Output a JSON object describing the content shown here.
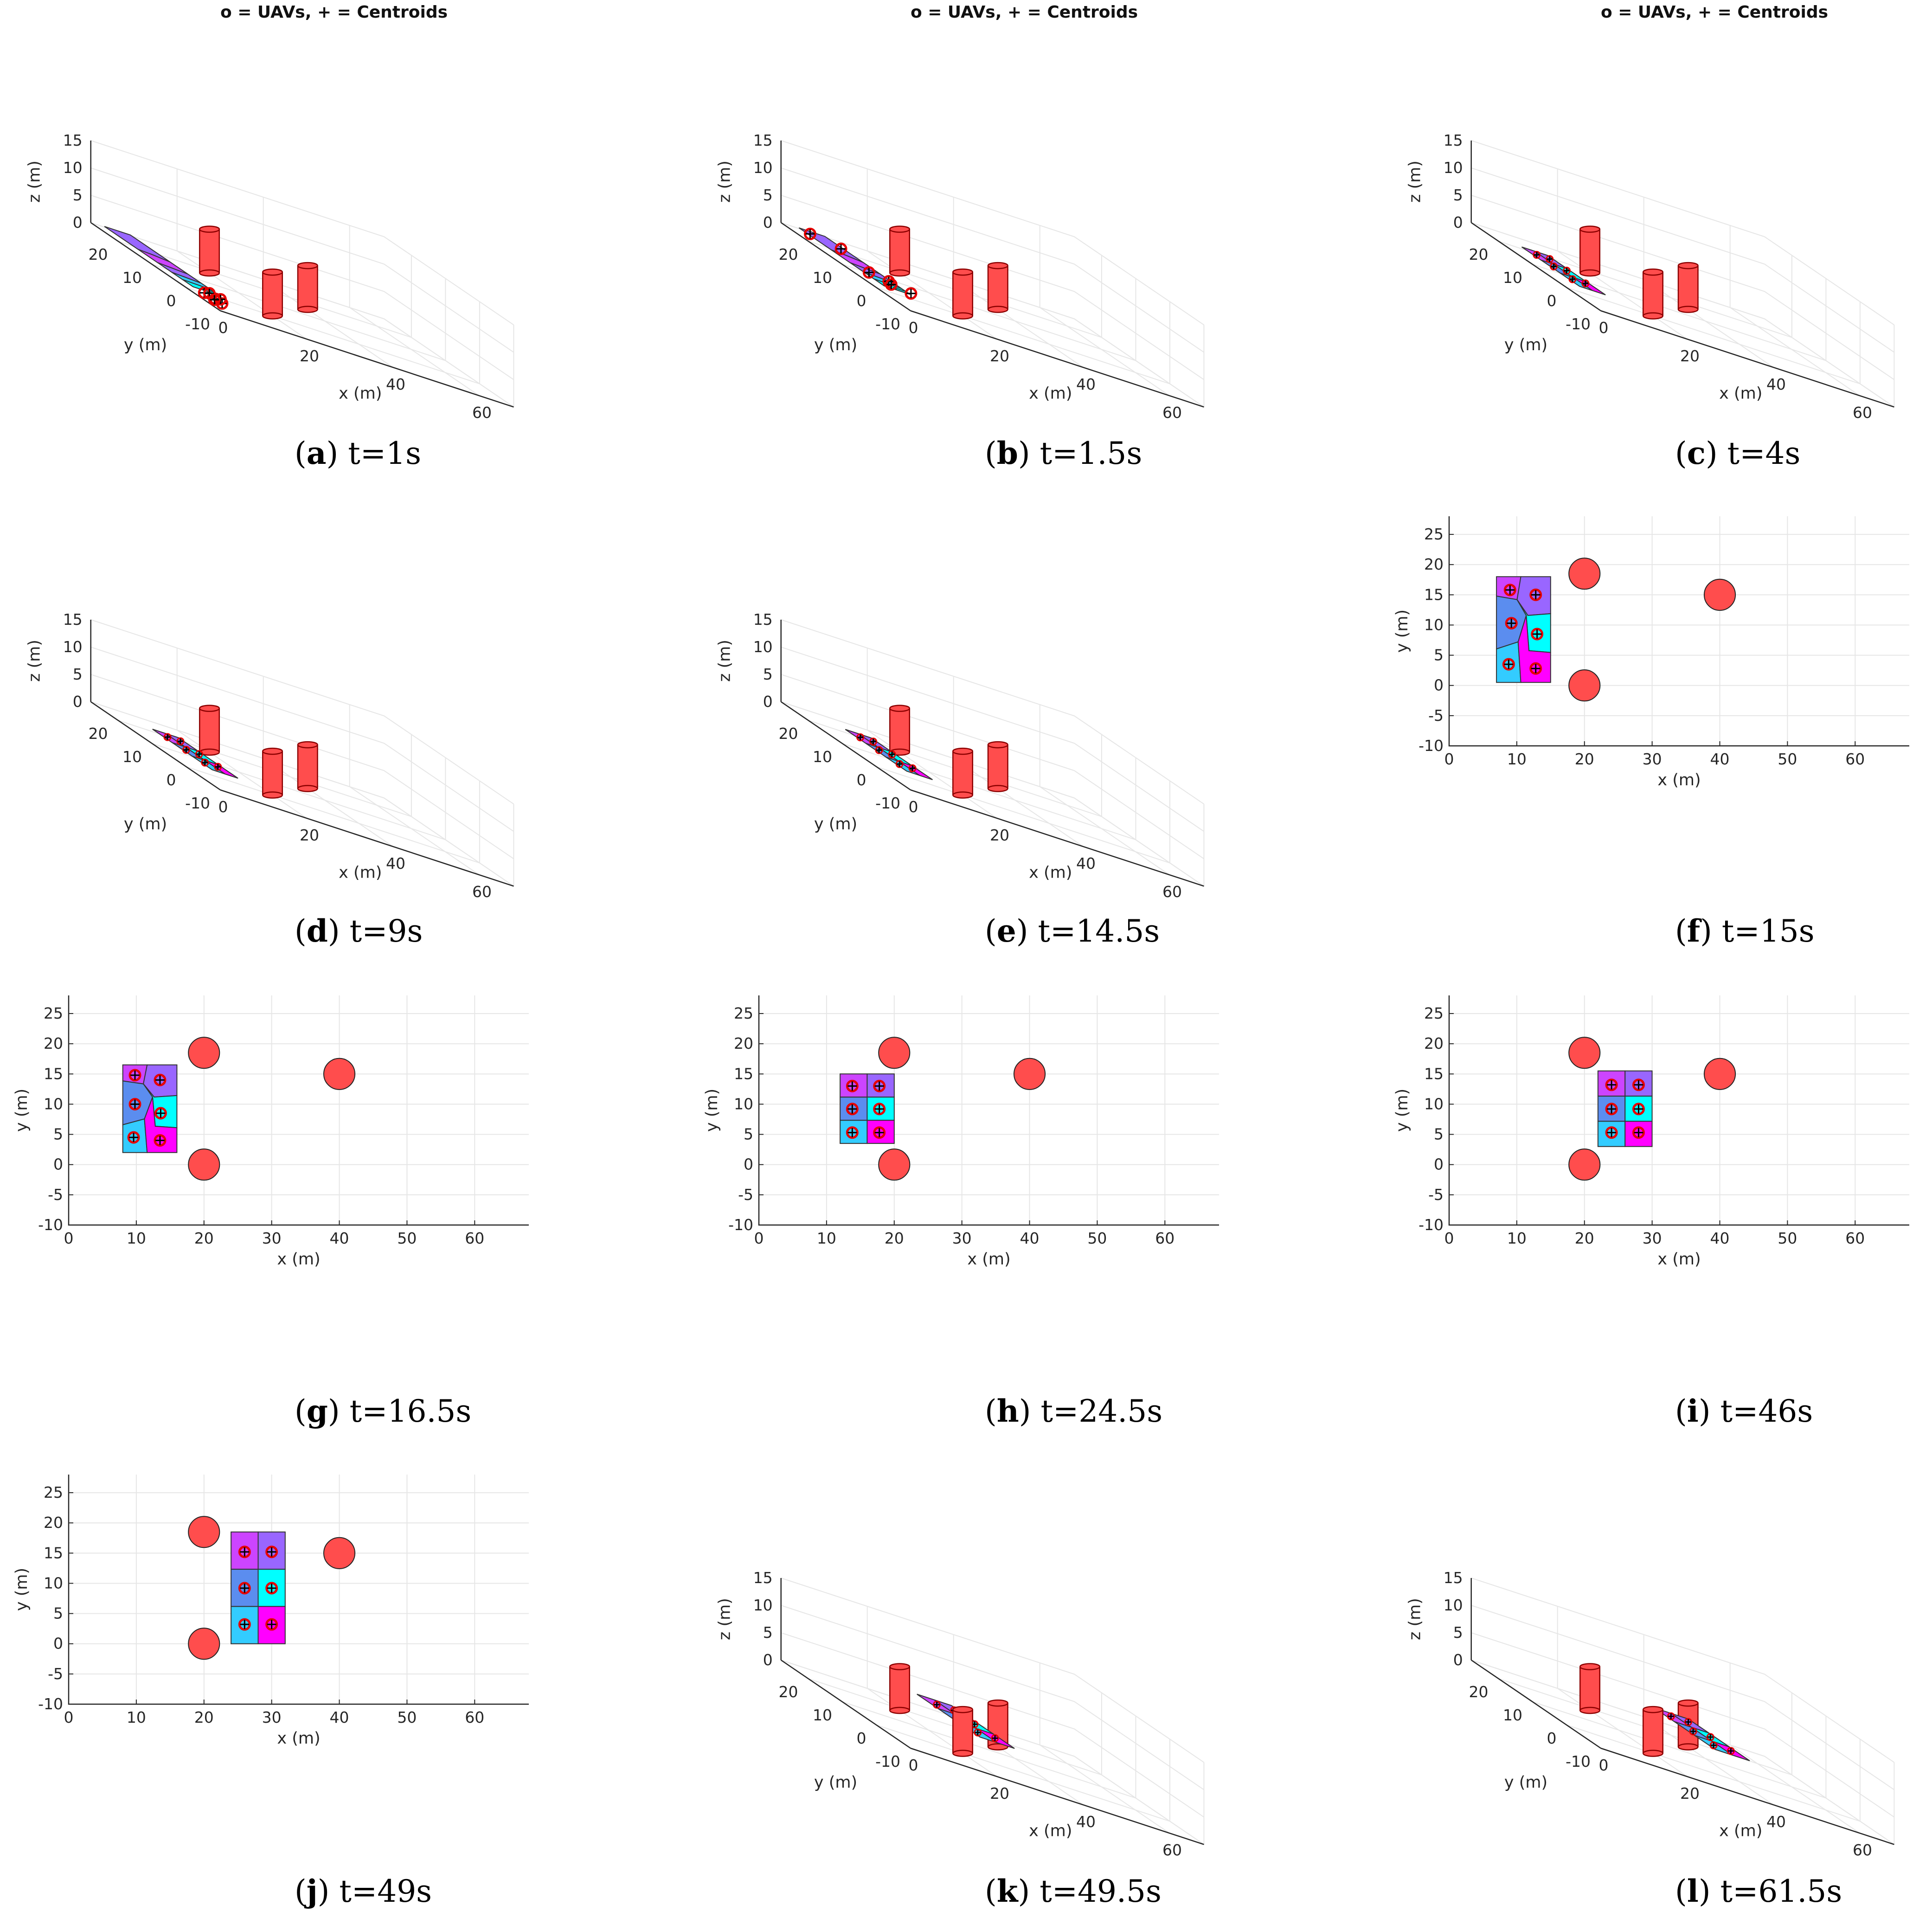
{
  "figure_panels": [
    {
      "id": "a",
      "time": "t=1s",
      "title": "o = UAVs, + = Centroids"
    },
    {
      "id": "b",
      "time": "t=1.5s",
      "title": "o = UAVs, + = Centroids"
    },
    {
      "id": "c",
      "time": "t=4s",
      "title": "o = UAVs, + = Centroids"
    },
    {
      "id": "d",
      "time": "t=9s",
      "title": ""
    },
    {
      "id": "e",
      "time": "t=14.5s",
      "title": ""
    },
    {
      "id": "f",
      "time": "t=15s",
      "title": ""
    },
    {
      "id": "g",
      "time": "t=16.5s",
      "title": ""
    },
    {
      "id": "h",
      "time": "t=24.5s",
      "title": ""
    },
    {
      "id": "i",
      "time": "t=46s",
      "title": ""
    },
    {
      "id": "j",
      "time": "t=49s",
      "title": ""
    },
    {
      "id": "k",
      "time": "t=49.5s",
      "title": ""
    },
    {
      "id": "l",
      "time": "t=61.5s",
      "title": ""
    }
  ],
  "colors": {
    "obstacle": "#ff4d4d",
    "obstacle_edge": "#8b0000",
    "purple": "#9966ff",
    "violet": "#cc44ff",
    "blue": "#5b8def",
    "cyan": "#00ffff",
    "sky": "#33ccff",
    "magenta": "#ff00ff",
    "grid": "#e6e6e6",
    "axis": "#262626",
    "uav": "#e60000"
  },
  "chart_data": [
    {
      "panel": "a",
      "type": "scatter",
      "view": "3d",
      "title": "o = UAVs, + = Centroids",
      "xlabel": "x (m)",
      "ylabel": "y (m)",
      "zlabel": "z (m)",
      "xlim": [
        0,
        68
      ],
      "ylim": [
        -10,
        28
      ],
      "zlim": [
        0,
        15
      ],
      "xticks": [
        0,
        20,
        40,
        60
      ],
      "yticks": [
        -10,
        0,
        10,
        20
      ],
      "zticks": [
        0,
        5,
        10,
        15
      ],
      "obstacles": [
        {
          "x": 20,
          "y": 0,
          "r": 2.5,
          "h": 8
        },
        {
          "x": 20,
          "y": 18.5,
          "r": 2.5,
          "h": 8
        },
        {
          "x": 40,
          "y": 15,
          "r": 2.5,
          "h": 8
        }
      ],
      "formation": {
        "x0": 0,
        "x1": 6,
        "y0": -2,
        "y1": 24,
        "z": 1,
        "layout": "strip"
      },
      "uavs": [
        [
          1,
          -4,
          1
        ],
        [
          2,
          -6,
          1
        ],
        [
          3,
          -3,
          1
        ],
        [
          2,
          -8,
          1
        ],
        [
          4,
          -5,
          1
        ],
        [
          1,
          -7,
          1
        ]
      ]
    },
    {
      "panel": "b",
      "type": "scatter",
      "view": "3d",
      "title": "o = UAVs, + = Centroids",
      "xlabel": "x (m)",
      "ylabel": "y (m)",
      "zlabel": "z (m)",
      "xlim": [
        0,
        68
      ],
      "ylim": [
        -10,
        28
      ],
      "zlim": [
        0,
        15
      ],
      "xticks": [
        0,
        20,
        40,
        60
      ],
      "yticks": [
        -10,
        0,
        10,
        20
      ],
      "zticks": [
        0,
        5,
        10,
        15
      ],
      "obstacles": [
        {
          "x": 20,
          "y": 0,
          "r": 2.5,
          "h": 8
        },
        {
          "x": 20,
          "y": 18.5,
          "r": 2.5,
          "h": 8
        },
        {
          "x": 40,
          "y": 15,
          "r": 2.5,
          "h": 8
        }
      ],
      "formation": {
        "x0": 1,
        "x1": 7,
        "y0": -1,
        "y1": 24,
        "z": 1,
        "layout": "strip"
      },
      "uavs": [
        [
          2,
          22,
          1
        ],
        [
          6,
          18,
          1
        ],
        [
          3,
          6,
          1
        ],
        [
          6,
          4,
          1
        ],
        [
          5,
          2,
          1
        ],
        [
          8,
          0,
          1
        ]
      ]
    },
    {
      "panel": "c",
      "type": "scatter",
      "view": "3d",
      "title": "o = UAVs, + = Centroids",
      "xlabel": "x (m)",
      "ylabel": "y (m)",
      "zlabel": "z (m)",
      "xlim": [
        0,
        68
      ],
      "ylim": [
        -10,
        28
      ],
      "zlim": [
        0,
        15
      ],
      "xticks": [
        0,
        20,
        40,
        60
      ],
      "yticks": [
        -10,
        0,
        10,
        20
      ],
      "zticks": [
        0,
        5,
        10,
        15
      ],
      "obstacles": [
        {
          "x": 20,
          "y": 0,
          "r": 2.5,
          "h": 8
        },
        {
          "x": 20,
          "y": 18.5,
          "r": 2.5,
          "h": 8
        },
        {
          "x": 40,
          "y": 15,
          "r": 2.5,
          "h": 8
        }
      ],
      "formation": {
        "x0": 3,
        "x1": 9,
        "y0": 0,
        "y1": 17,
        "z": 1,
        "layout": "grid"
      },
      "uavs": [
        [
          4.5,
          14.5,
          1
        ],
        [
          7.5,
          14.5,
          1
        ],
        [
          4.5,
          9.5,
          1
        ],
        [
          7.5,
          9.5,
          1
        ],
        [
          4.5,
          4,
          1
        ],
        [
          7.5,
          4,
          1
        ]
      ]
    },
    {
      "panel": "d",
      "type": "scatter",
      "view": "3d",
      "title": "",
      "xlabel": "x (m)",
      "ylabel": "y (m)",
      "zlabel": "z (m)",
      "xlim": [
        0,
        68
      ],
      "ylim": [
        -10,
        28
      ],
      "zlim": [
        0,
        15
      ],
      "xticks": [
        0,
        20,
        40,
        60
      ],
      "yticks": [
        -10,
        0,
        10,
        20
      ],
      "zticks": [
        0,
        5,
        10,
        15
      ],
      "obstacles": [
        {
          "x": 20,
          "y": 0,
          "r": 2.5,
          "h": 8
        },
        {
          "x": 20,
          "y": 18.5,
          "r": 2.5,
          "h": 8
        },
        {
          "x": 40,
          "y": 15,
          "r": 2.5,
          "h": 8
        }
      ],
      "formation": {
        "x0": 6,
        "x1": 12,
        "y0": 0,
        "y1": 17.5,
        "z": 1,
        "layout": "grid"
      },
      "uavs": [
        [
          7.5,
          15,
          1
        ],
        [
          10.5,
          15,
          1
        ],
        [
          7.5,
          9.5,
          1
        ],
        [
          10.5,
          9.5,
          1
        ],
        [
          7.5,
          4,
          1
        ],
        [
          10.5,
          4,
          1
        ]
      ]
    },
    {
      "panel": "e",
      "type": "scatter",
      "view": "3d",
      "title": "",
      "xlabel": "x (m)",
      "ylabel": "y (m)",
      "zlabel": "z (m)",
      "xlim": [
        0,
        68
      ],
      "ylim": [
        -10,
        28
      ],
      "zlim": [
        0,
        15
      ],
      "xticks": [
        0,
        20,
        40,
        60
      ],
      "yticks": [
        -10,
        0,
        10,
        20
      ],
      "zticks": [
        0,
        5,
        10,
        15
      ],
      "obstacles": [
        {
          "x": 20,
          "y": 0,
          "r": 2.5,
          "h": 8
        },
        {
          "x": 20,
          "y": 18.5,
          "r": 2.5,
          "h": 8
        },
        {
          "x": 40,
          "y": 15,
          "r": 2.5,
          "h": 8
        }
      ],
      "formation": {
        "x0": 7,
        "x1": 13,
        "y0": 0,
        "y1": 18,
        "z": 1,
        "layout": "grid"
      },
      "uavs": [
        [
          8.5,
          15.5,
          1
        ],
        [
          11.5,
          15.5,
          1
        ],
        [
          8.5,
          10,
          1
        ],
        [
          11.5,
          10,
          1
        ],
        [
          8.5,
          4,
          1
        ],
        [
          11.5,
          4,
          1
        ]
      ]
    },
    {
      "panel": "f",
      "type": "scatter",
      "view": "2d",
      "title": "",
      "xlabel": "x (m)",
      "ylabel": "y (m)",
      "xlim": [
        0,
        68
      ],
      "ylim": [
        -10,
        28
      ],
      "xticks": [
        0,
        10,
        20,
        30,
        40,
        50,
        60
      ],
      "yticks": [
        -10,
        -5,
        0,
        5,
        10,
        15,
        20,
        25
      ],
      "obstacles": [
        {
          "x": 20,
          "y": 0,
          "r": 2.3
        },
        {
          "x": 20,
          "y": 18.5,
          "r": 2.3
        },
        {
          "x": 40,
          "y": 15,
          "r": 2.3
        }
      ],
      "formation": {
        "x0": 7,
        "x1": 15,
        "y0": 0.5,
        "y1": 18,
        "layout": "voronoi"
      },
      "uavs": [
        [
          9,
          15.8
        ],
        [
          12.8,
          15
        ],
        [
          9.2,
          10.3
        ],
        [
          13,
          8.5
        ],
        [
          8.8,
          3.5
        ],
        [
          12.8,
          2.8
        ]
      ]
    },
    {
      "panel": "g",
      "type": "scatter",
      "view": "2d",
      "title": "",
      "xlabel": "x (m)",
      "ylabel": "y (m)",
      "xlim": [
        0,
        68
      ],
      "ylim": [
        -10,
        28
      ],
      "xticks": [
        0,
        10,
        20,
        30,
        40,
        50,
        60
      ],
      "yticks": [
        -10,
        -5,
        0,
        5,
        10,
        15,
        20,
        25
      ],
      "obstacles": [
        {
          "x": 20,
          "y": 0,
          "r": 2.3
        },
        {
          "x": 20,
          "y": 18.5,
          "r": 2.3
        },
        {
          "x": 40,
          "y": 15,
          "r": 2.3
        }
      ],
      "formation": {
        "x0": 8,
        "x1": 16,
        "y0": 2,
        "y1": 16.5,
        "layout": "voronoi"
      },
      "uavs": [
        [
          9.8,
          14.8
        ],
        [
          13.5,
          14
        ],
        [
          9.8,
          10
        ],
        [
          13.6,
          8.5
        ],
        [
          9.6,
          4.5
        ],
        [
          13.5,
          4
        ]
      ]
    },
    {
      "panel": "h",
      "type": "scatter",
      "view": "2d",
      "title": "",
      "xlabel": "x (m)",
      "ylabel": "y (m)",
      "xlim": [
        0,
        68
      ],
      "ylim": [
        -10,
        28
      ],
      "xticks": [
        0,
        10,
        20,
        30,
        40,
        50,
        60
      ],
      "yticks": [
        -10,
        -5,
        0,
        5,
        10,
        15,
        20,
        25
      ],
      "obstacles": [
        {
          "x": 20,
          "y": 0,
          "r": 2.3
        },
        {
          "x": 20,
          "y": 18.5,
          "r": 2.3
        },
        {
          "x": 40,
          "y": 15,
          "r": 2.3
        }
      ],
      "formation": {
        "x0": 12,
        "x1": 20,
        "y0": 3.5,
        "y1": 15,
        "layout": "grid"
      },
      "uavs": [
        [
          13.8,
          13
        ],
        [
          17.8,
          13
        ],
        [
          13.8,
          9.2
        ],
        [
          17.8,
          9.2
        ],
        [
          13.8,
          5.3
        ],
        [
          17.8,
          5.3
        ]
      ]
    },
    {
      "panel": "i",
      "type": "scatter",
      "view": "2d",
      "title": "",
      "xlabel": "x (m)",
      "ylabel": "y (m)",
      "xlim": [
        0,
        68
      ],
      "ylim": [
        -10,
        28
      ],
      "xticks": [
        0,
        10,
        20,
        30,
        40,
        50,
        60
      ],
      "yticks": [
        -10,
        -5,
        0,
        5,
        10,
        15,
        20,
        25
      ],
      "obstacles": [
        {
          "x": 20,
          "y": 0,
          "r": 2.3
        },
        {
          "x": 20,
          "y": 18.5,
          "r": 2.3
        },
        {
          "x": 40,
          "y": 15,
          "r": 2.3
        }
      ],
      "formation": {
        "x0": 22,
        "x1": 30,
        "y0": 3,
        "y1": 15.5,
        "layout": "grid"
      },
      "uavs": [
        [
          24,
          13.2
        ],
        [
          28,
          13.2
        ],
        [
          24,
          9.2
        ],
        [
          28,
          9.2
        ],
        [
          24,
          5.3
        ],
        [
          28,
          5.3
        ]
      ]
    },
    {
      "panel": "j",
      "type": "scatter",
      "view": "2d",
      "title": "",
      "xlabel": "x (m)",
      "ylabel": "y (m)",
      "xlim": [
        0,
        68
      ],
      "ylim": [
        -10,
        28
      ],
      "xticks": [
        0,
        10,
        20,
        30,
        40,
        50,
        60
      ],
      "yticks": [
        -10,
        -5,
        0,
        5,
        10,
        15,
        20,
        25
      ],
      "obstacles": [
        {
          "x": 20,
          "y": 0,
          "r": 2.3
        },
        {
          "x": 20,
          "y": 18.5,
          "r": 2.3
        },
        {
          "x": 40,
          "y": 15,
          "r": 2.3
        }
      ],
      "formation": {
        "x0": 24,
        "x1": 32,
        "y0": 0,
        "y1": 18.5,
        "layout": "grid"
      },
      "uavs": [
        [
          26,
          15.2
        ],
        [
          30,
          15.2
        ],
        [
          26,
          9.2
        ],
        [
          30,
          9.2
        ],
        [
          26,
          3.2
        ],
        [
          30,
          3.2
        ]
      ]
    },
    {
      "panel": "k",
      "type": "scatter",
      "view": "3d",
      "title": "",
      "xlabel": "x (m)",
      "ylabel": "y (m)",
      "zlabel": "z (m)",
      "xlim": [
        0,
        68
      ],
      "ylim": [
        -10,
        28
      ],
      "zlim": [
        0,
        15
      ],
      "xticks": [
        0,
        20,
        40,
        60
      ],
      "yticks": [
        -10,
        0,
        10,
        20
      ],
      "zticks": [
        0,
        5,
        10,
        15
      ],
      "obstacles": [
        {
          "x": 20,
          "y": 0,
          "r": 2.5,
          "h": 8
        },
        {
          "x": 20,
          "y": 18.5,
          "r": 2.5,
          "h": 8
        },
        {
          "x": 40,
          "y": 15,
          "r": 2.5,
          "h": 8
        }
      ],
      "formation": {
        "x0": 24,
        "x1": 32,
        "y0": 0,
        "y1": 18.5,
        "z": 4,
        "layout": "grid"
      },
      "uavs": [
        [
          26,
          15.2,
          4
        ],
        [
          30,
          15.2,
          4
        ],
        [
          26,
          9.2,
          4
        ],
        [
          30,
          9.2,
          4
        ],
        [
          26,
          3.2,
          4
        ],
        [
          30,
          3.2,
          4
        ]
      ]
    },
    {
      "panel": "l",
      "type": "scatter",
      "view": "3d",
      "title": "",
      "xlabel": "x (m)",
      "ylabel": "y (m)",
      "zlabel": "z (m)",
      "xlim": [
        0,
        68
      ],
      "ylim": [
        -10,
        28
      ],
      "zlim": [
        0,
        15
      ],
      "xticks": [
        0,
        20,
        40,
        60
      ],
      "yticks": [
        -10,
        0,
        10,
        20
      ],
      "zticks": [
        0,
        5,
        10,
        15
      ],
      "obstacles": [
        {
          "x": 20,
          "y": 0,
          "r": 2.5,
          "h": 8
        },
        {
          "x": 20,
          "y": 18.5,
          "r": 2.5,
          "h": 8
        },
        {
          "x": 40,
          "y": 15,
          "r": 2.5,
          "h": 8
        }
      ],
      "formation": {
        "x0": 36,
        "x1": 44,
        "y0": 2,
        "y1": 20,
        "z": 4,
        "layout": "grid"
      },
      "uavs": [
        [
          38,
          17.5,
          4
        ],
        [
          42,
          17.5,
          4
        ],
        [
          38,
          11,
          4
        ],
        [
          42,
          11,
          4
        ],
        [
          38,
          5,
          4
        ],
        [
          42,
          5,
          4
        ]
      ]
    }
  ]
}
